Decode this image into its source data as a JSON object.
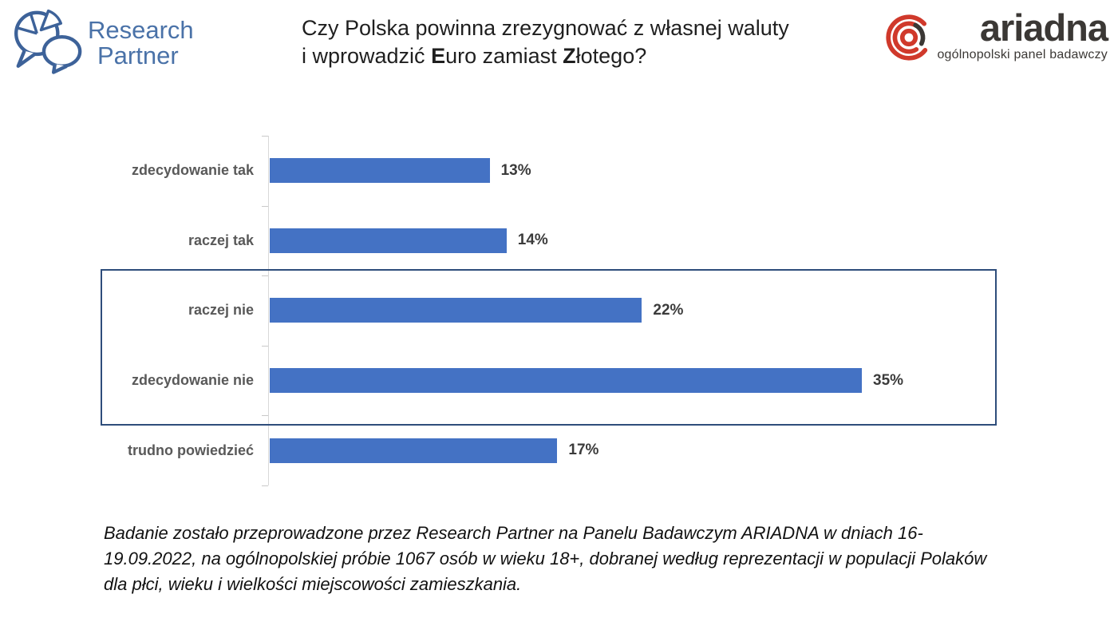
{
  "header": {
    "research_partner": {
      "line1": "Research",
      "line2": "Partner",
      "brand_color": "#4A72A8"
    },
    "title": {
      "line1": "Czy Polska powinna zrezygnować z własnej waluty",
      "line2_segments": [
        {
          "text": "i wprowadzić ",
          "bold": false
        },
        {
          "text": "E",
          "bold": true
        },
        {
          "text": "uro zamiast ",
          "bold": false
        },
        {
          "text": "Z",
          "bold": true
        },
        {
          "text": "łotego?",
          "bold": false
        }
      ]
    },
    "ariadna": {
      "name": "ariadna",
      "tagline": "ogólnopolski panel badawczy",
      "brand_red": "#D0392B",
      "brand_dark": "#3B3835"
    }
  },
  "chart_data": {
    "type": "bar",
    "orientation": "horizontal",
    "categories": [
      "zdecydowanie tak",
      "raczej tak",
      "raczej nie",
      "zdecydowanie nie",
      "trudno powiedzieć"
    ],
    "values": [
      13,
      14,
      22,
      35,
      17
    ],
    "value_labels": [
      "13%",
      "14%",
      "22%",
      "35%",
      "17%"
    ],
    "unit": "%",
    "bar_color": "#4472C4",
    "axis_color": "#D9D9D9",
    "grid": false,
    "legend": "none",
    "xlim": [
      0,
      40
    ],
    "highlight_box": {
      "around_categories": [
        "raczej nie",
        "zdecydowanie nie"
      ],
      "border_color": "#2E4D7B"
    }
  },
  "footnote": {
    "text": "Badanie zostało przeprowadzone przez Research Partner na Panelu Badawczym ARIADNA w dniach 16-19.09.2022, na ogólnopolskiej próbie 1067 osób w wieku 18+, dobranej według reprezentacji w populacji Polaków dla płci, wieku i wielkości miejscowości zamieszkania."
  }
}
